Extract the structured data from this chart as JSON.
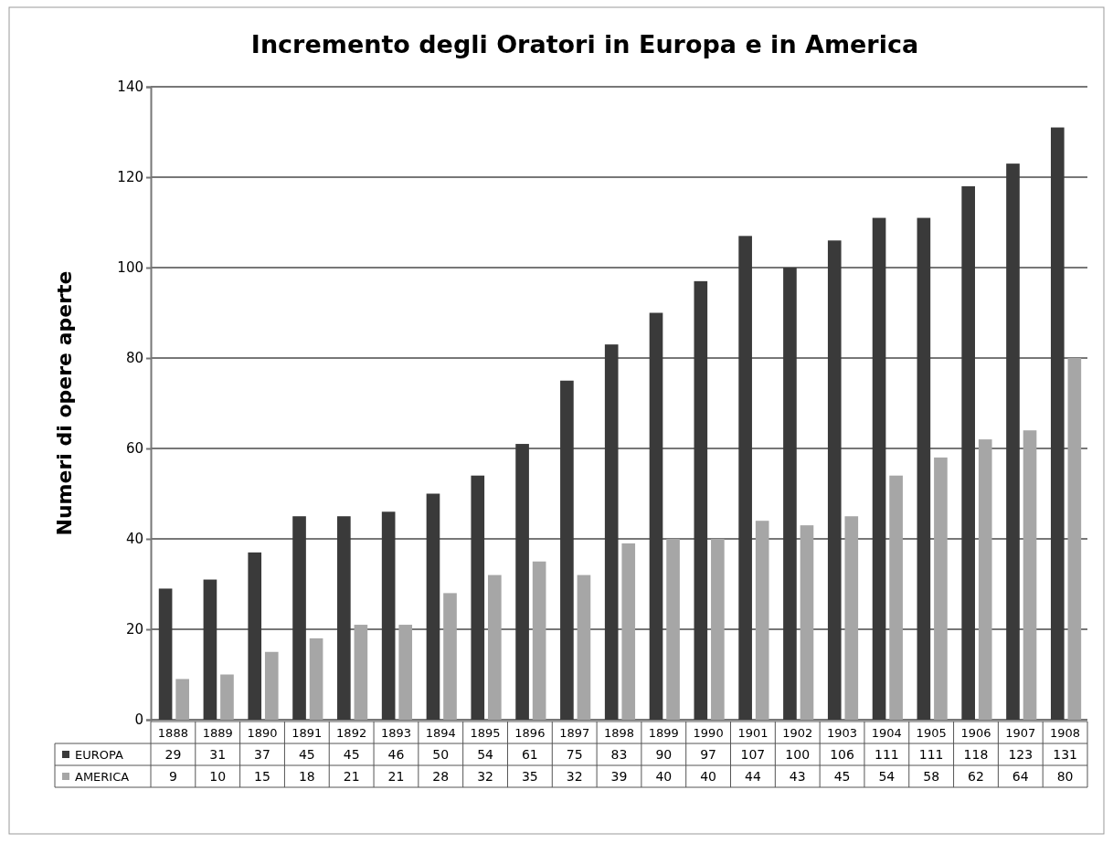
{
  "chart_data": {
    "type": "bar",
    "title": "Incremento degli Oratori in Europa e in America",
    "ylabel": "Numeri di opere aperte",
    "categories": [
      "1888",
      "1889",
      "1890",
      "1891",
      "1892",
      "1893",
      "1894",
      "1895",
      "1896",
      "1897",
      "1898",
      "1899",
      "1990",
      "1901",
      "1902",
      "1903",
      "1904",
      "1905",
      "1906",
      "1907",
      "1908"
    ],
    "series": [
      {
        "name": "EUROPA",
        "color": "#3a3a3a",
        "values": [
          29,
          31,
          37,
          45,
          45,
          46,
          50,
          54,
          61,
          75,
          83,
          90,
          97,
          107,
          100,
          106,
          111,
          111,
          118,
          123,
          131
        ]
      },
      {
        "name": "AMERICA",
        "color": "#a6a6a6",
        "values": [
          9,
          10,
          15,
          18,
          21,
          21,
          28,
          32,
          35,
          32,
          39,
          40,
          40,
          44,
          43,
          45,
          54,
          58,
          62,
          64,
          80
        ]
      }
    ],
    "ylim": [
      0,
      140
    ],
    "yticks": [
      0,
      20,
      40,
      60,
      80,
      100,
      120,
      140
    ],
    "grid": "y",
    "legend": "bottom",
    "data_labels": true
  }
}
